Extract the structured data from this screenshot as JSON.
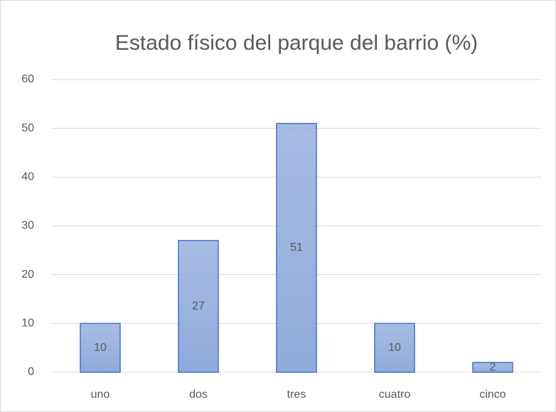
{
  "chart_data": {
    "type": "bar",
    "title": "Estado físico del parque del barrio (%)",
    "categories": [
      "uno",
      "dos",
      "tres",
      "cuatro",
      "cinco"
    ],
    "values": [
      10,
      27,
      51,
      10,
      2
    ],
    "color": "#8faadc",
    "edgecolor": "#4472c4",
    "ylim": [
      0,
      60
    ],
    "yticks": [
      0,
      10,
      20,
      30,
      40,
      50,
      60
    ],
    "grid": true,
    "data_labels": true
  }
}
